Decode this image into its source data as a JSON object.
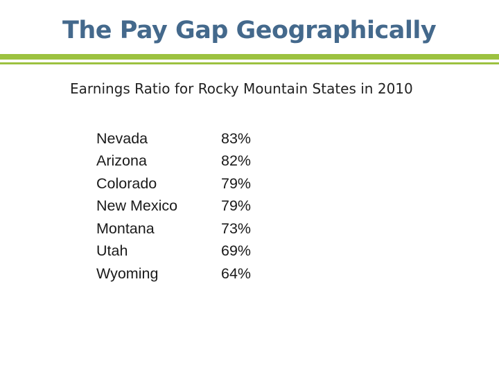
{
  "slide": {
    "title": "The Pay Gap Geographically",
    "subtitle": "Earnings Ratio for Rocky Mountain States in 2010",
    "accent_color": "#9cc240",
    "title_color": "#44698c"
  },
  "table": {
    "rows": [
      {
        "state": "Nevada",
        "ratio": "83%"
      },
      {
        "state": "Arizona",
        "ratio": "82%"
      },
      {
        "state": "Colorado",
        "ratio": "79%"
      },
      {
        "state": "New Mexico",
        "ratio": "79%"
      },
      {
        "state": "Montana",
        "ratio": "73%"
      },
      {
        "state": "Utah",
        "ratio": "69%"
      },
      {
        "state": "Wyoming",
        "ratio": "64%"
      }
    ]
  }
}
